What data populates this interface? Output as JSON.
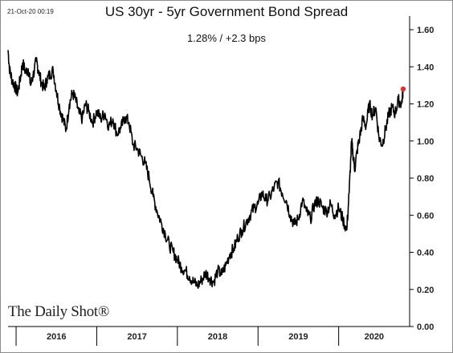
{
  "timestamp": "21-Oct-20 00:19",
  "watermark": "The Daily Shot®",
  "chart_data": {
    "type": "line",
    "title": "US 30yr - 5yr Government Bond Spread",
    "subtitle": "1.28%  /  +2.3 bps",
    "xlabel": "",
    "ylabel": "",
    "ylim": [
      0.0,
      1.6
    ],
    "yticks": [
      "0.00",
      "0.20",
      "0.40",
      "0.60",
      "0.80",
      "1.00",
      "1.20",
      "1.40",
      "1.60"
    ],
    "xticks": [
      "2016",
      "2017",
      "2018",
      "2019",
      "2020"
    ],
    "xlim": [
      2015.9,
      2020.88
    ],
    "grid": false,
    "last_point_color": "#e03030",
    "line_color": "#000000",
    "series": [
      {
        "x": [
          2015.9,
          2015.92,
          2015.95,
          2015.98,
          2016.02,
          2016.05,
          2016.08,
          2016.12,
          2016.15,
          2016.18,
          2016.21,
          2016.25,
          2016.28,
          2016.31,
          2016.35,
          2016.38,
          2016.42,
          2016.46,
          2016.5,
          2016.54,
          2016.58,
          2016.62,
          2016.66,
          2016.7,
          2016.74,
          2016.78,
          2016.82,
          2016.86,
          2016.9,
          2016.95,
          2017.0,
          2017.05,
          2017.1,
          2017.15,
          2017.2,
          2017.25,
          2017.3,
          2017.35,
          2017.4,
          2017.45,
          2017.5,
          2017.55,
          2017.6,
          2017.65,
          2017.7,
          2017.75,
          2017.8,
          2017.85,
          2017.9,
          2017.95,
          2018.0,
          2018.05,
          2018.1,
          2018.15,
          2018.2,
          2018.25,
          2018.3,
          2018.35,
          2018.4,
          2018.45,
          2018.5,
          2018.55,
          2018.6,
          2018.65,
          2018.7,
          2018.75,
          2018.8,
          2018.85,
          2018.9,
          2018.95,
          2019.0,
          2019.05,
          2019.1,
          2019.15,
          2019.2,
          2019.25,
          2019.3,
          2019.35,
          2019.4,
          2019.45,
          2019.5,
          2019.55,
          2019.6,
          2019.65,
          2019.7,
          2019.75,
          2019.8,
          2019.85,
          2019.9,
          2019.95,
          2020.0,
          2020.05,
          2020.1,
          2020.13,
          2020.16,
          2020.18,
          2020.2,
          2020.23,
          2020.26,
          2020.3,
          2020.34,
          2020.38,
          2020.42,
          2020.46,
          2020.5,
          2020.54,
          2020.58,
          2020.62,
          2020.66,
          2020.7,
          2020.74,
          2020.78,
          2020.8
        ],
        "values": [
          1.49,
          1.38,
          1.33,
          1.3,
          1.26,
          1.33,
          1.42,
          1.37,
          1.39,
          1.3,
          1.35,
          1.43,
          1.38,
          1.32,
          1.28,
          1.33,
          1.36,
          1.38,
          1.27,
          1.18,
          1.12,
          1.06,
          1.2,
          1.26,
          1.22,
          1.15,
          1.12,
          1.2,
          1.16,
          1.1,
          1.16,
          1.12,
          1.15,
          1.08,
          1.12,
          1.04,
          1.07,
          1.13,
          1.1,
          0.98,
          0.96,
          0.92,
          0.88,
          0.8,
          0.7,
          0.62,
          0.56,
          0.5,
          0.44,
          0.4,
          0.36,
          0.32,
          0.3,
          0.27,
          0.24,
          0.22,
          0.25,
          0.29,
          0.26,
          0.24,
          0.3,
          0.28,
          0.33,
          0.39,
          0.42,
          0.48,
          0.52,
          0.56,
          0.6,
          0.64,
          0.66,
          0.72,
          0.68,
          0.7,
          0.75,
          0.78,
          0.72,
          0.68,
          0.6,
          0.55,
          0.58,
          0.68,
          0.62,
          0.58,
          0.66,
          0.68,
          0.64,
          0.62,
          0.66,
          0.6,
          0.64,
          0.58,
          0.52,
          0.72,
          1.0,
          0.92,
          0.85,
          0.95,
          1.02,
          1.12,
          1.08,
          1.2,
          1.14,
          1.18,
          1.02,
          0.98,
          1.06,
          1.14,
          1.18,
          1.15,
          1.22,
          1.2,
          1.28
        ]
      }
    ]
  }
}
